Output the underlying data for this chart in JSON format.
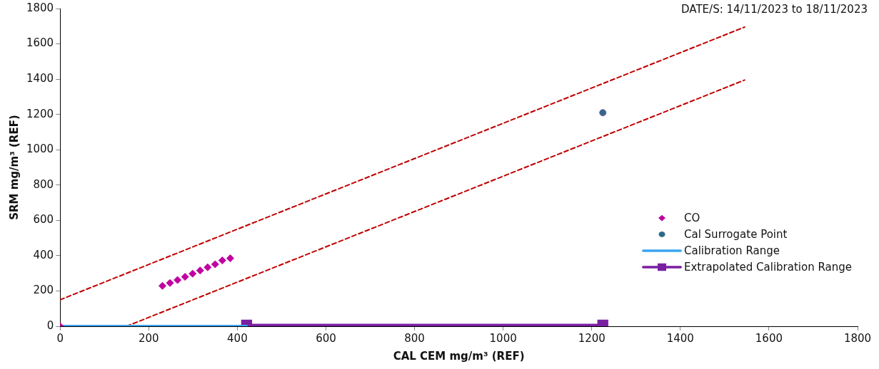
{
  "chart_data": {
    "type": "scatter",
    "xlabel": "CAL CEM mg/m³ (REF)",
    "ylabel": "SRM mg/m³ (REF)",
    "annotations": [
      "DATE/S: 14/11/2023 to 18/11/2023"
    ],
    "xlim": [
      0,
      1800
    ],
    "xticks": [
      0,
      200,
      400,
      600,
      800,
      1000,
      1200,
      1400,
      1600,
      1800
    ],
    "ylim": [
      0,
      1800
    ],
    "yticks": [
      0,
      200,
      400,
      600,
      800,
      1000,
      1200,
      1400,
      1600,
      1800
    ],
    "grid": false,
    "legend": "right",
    "series": [
      {
        "name": "CO",
        "type": "scatter",
        "marker": "diamond",
        "color": "#c000a0",
        "x": [
          0,
          231,
          248,
          265,
          282,
          299,
          316,
          333,
          350,
          366,
          384
        ],
        "values": [
          0,
          229,
          245,
          262,
          280,
          298,
          316,
          334,
          351,
          373,
          385
        ]
      },
      {
        "name": "Cal Surrogate Point",
        "type": "scatter",
        "marker": "circle",
        "color": "#2e6b8a",
        "x": [
          1225
        ],
        "values": [
          1210
        ]
      },
      {
        "name": "Calibration Range",
        "type": "line",
        "marker": "none",
        "color": "#3aa5f0",
        "x": [
          0,
          421
        ],
        "values": [
          0,
          0
        ]
      },
      {
        "name": "Extrapolated Calibration Range",
        "type": "line",
        "marker": "square",
        "color": "#7a1fa2",
        "x": [
          421,
          1225
        ],
        "values": [
          6,
          6
        ]
      },
      {
        "type": "line",
        "marker": "none",
        "line_style": "dashed",
        "color": "#c00000",
        "x": [
          0,
          1545
        ],
        "values": [
          150,
          1695
        ]
      },
      {
        "type": "line",
        "marker": "none",
        "line_style": "dashed",
        "color": "#c00000",
        "x": [
          150,
          1545
        ],
        "values": [
          0,
          1395
        ]
      }
    ]
  }
}
